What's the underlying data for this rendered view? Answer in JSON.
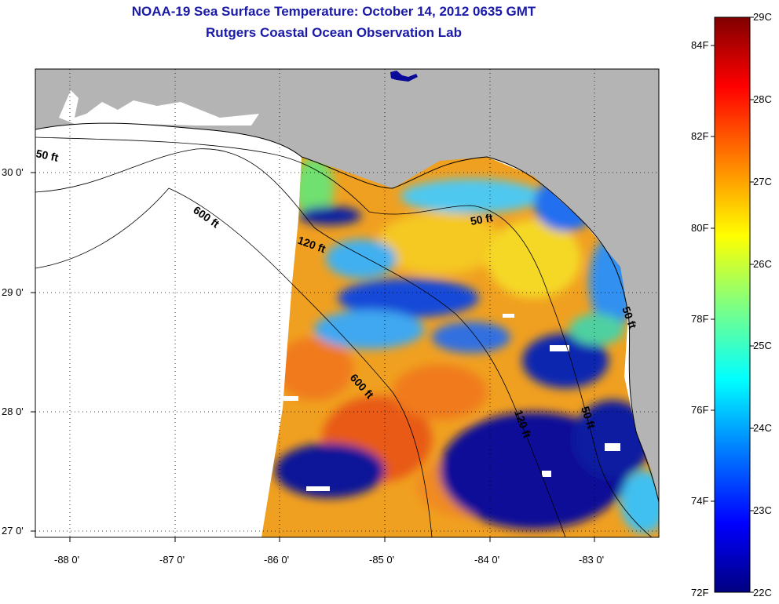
{
  "title": "NOAA-19 Sea Surface Temperature:  October 14, 2012 0635 GMT",
  "subtitle": "Rutgers Coastal Ocean Observation Lab",
  "axes": {
    "lon_labels": [
      "-88 0'",
      "-87 0'",
      "-86 0'",
      "-85 0'",
      "-84 0'",
      "-83 0'"
    ],
    "lat_labels": [
      "30 0'",
      "29 0'",
      "28 0'",
      "27 0'"
    ]
  },
  "contours": [
    {
      "label": "50 ft"
    },
    {
      "label": "600 ft"
    },
    {
      "label": "120 ft"
    },
    {
      "label": "50 ft"
    },
    {
      "label": "600 ft"
    },
    {
      "label": "120 ft"
    },
    {
      "label": "50 ft"
    },
    {
      "label": "50 ft"
    }
  ],
  "colorbar": {
    "fahrenheit": [
      "84F",
      "82F",
      "80F",
      "78F",
      "76F",
      "74F",
      "72F"
    ],
    "celsius": [
      "29C",
      "28C",
      "27C",
      "26C",
      "25C",
      "24C",
      "23C",
      "22C"
    ],
    "colors": [
      "#800000",
      "#ff0000",
      "#ff8000",
      "#ffff00",
      "#80ff80",
      "#00ffff",
      "#0080ff",
      "#0000ff",
      "#000080"
    ]
  },
  "colors": {
    "land": "#b4b4b4",
    "no_data": "#ffffff",
    "title": "#1a1aa8",
    "warm": "#f07a1e",
    "cool": "#0a0a98"
  }
}
